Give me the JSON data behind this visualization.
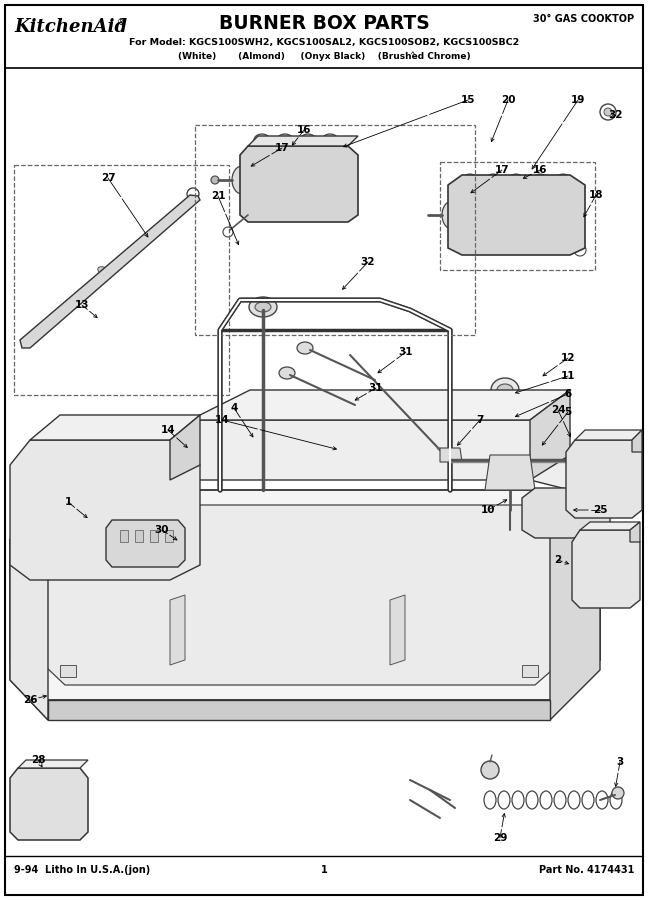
{
  "title_brand": "KitchenAid",
  "title_main": "BURNER BOX PARTS",
  "title_right": "30° GAS COOKTOP",
  "subtitle": "For Model: KGCS100SWH2, KGCS100SAL2, KGCS100SOB2, KGCS100SBC2",
  "subtitle2": "(White)    (Almond)   (Onyx Black)  (Brushed Chrome)",
  "footer_left": "9-94  Litho In U.S.A.(jon)",
  "footer_center": "1",
  "footer_right": "Part No. 4174431",
  "bg_color": "#ffffff",
  "lc": "#333333"
}
